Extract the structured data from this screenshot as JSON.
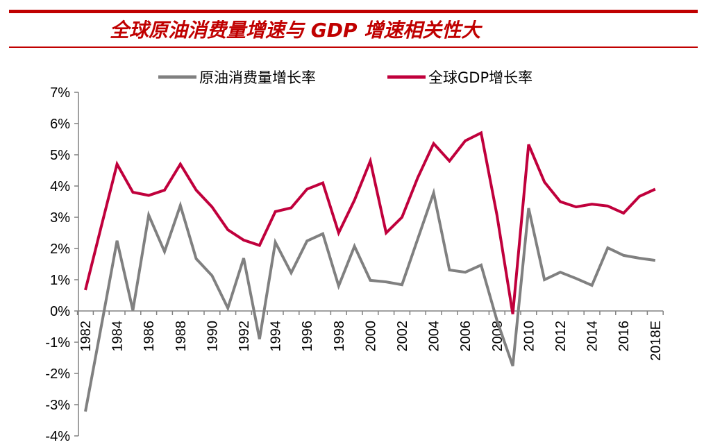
{
  "header": {
    "title": "全球原油消费量增速与 GDP 增速相关性大"
  },
  "chart_data": {
    "type": "line",
    "title": "",
    "xlabel": "",
    "ylabel": "",
    "ylim": [
      -4,
      7
    ],
    "ytick_step": 1,
    "ytick_format": "%",
    "grid": false,
    "legend": "top",
    "x": [
      1982,
      1983,
      1984,
      1985,
      1986,
      1987,
      1988,
      1989,
      1990,
      1991,
      1992,
      1993,
      1994,
      1995,
      1996,
      1997,
      1998,
      1999,
      2000,
      2001,
      2002,
      2003,
      2004,
      2005,
      2006,
      2007,
      2008,
      2009,
      2010,
      2011,
      2012,
      2013,
      2014,
      2015,
      2016,
      2017,
      2018
    ],
    "xtick_labels": [
      "1982",
      "1984",
      "1986",
      "1988",
      "1990",
      "1992",
      "1994",
      "1996",
      "1998",
      "2000",
      "2002",
      "2004",
      "2006",
      "2008",
      "2010",
      "2012",
      "2014",
      "2016",
      "2018E"
    ],
    "series": [
      {
        "name": "原油消费量增长率",
        "color": "#808080",
        "values": [
          -3.22,
          -0.5,
          2.25,
          0.02,
          3.07,
          1.9,
          3.38,
          1.67,
          1.13,
          0.09,
          1.69,
          -0.9,
          2.2,
          1.22,
          2.24,
          2.47,
          0.8,
          2.07,
          0.98,
          0.93,
          0.84,
          2.31,
          3.78,
          1.31,
          1.24,
          1.47,
          -0.3,
          -1.76,
          3.29,
          1.0,
          1.24,
          1.04,
          0.82,
          2.02,
          1.78,
          1.69,
          1.62
        ]
      },
      {
        "name": "全球GDP增长率",
        "color": "#c0003c",
        "values": [
          0.67,
          2.7,
          4.7,
          3.8,
          3.7,
          3.87,
          4.7,
          3.87,
          3.33,
          2.6,
          2.27,
          2.1,
          3.18,
          3.3,
          3.9,
          4.1,
          2.5,
          3.55,
          4.8,
          2.5,
          3.0,
          4.27,
          5.36,
          4.8,
          5.45,
          5.7,
          3.07,
          -0.1,
          5.33,
          4.13,
          3.5,
          3.33,
          3.42,
          3.36,
          3.13,
          3.67,
          3.9
        ]
      }
    ]
  }
}
